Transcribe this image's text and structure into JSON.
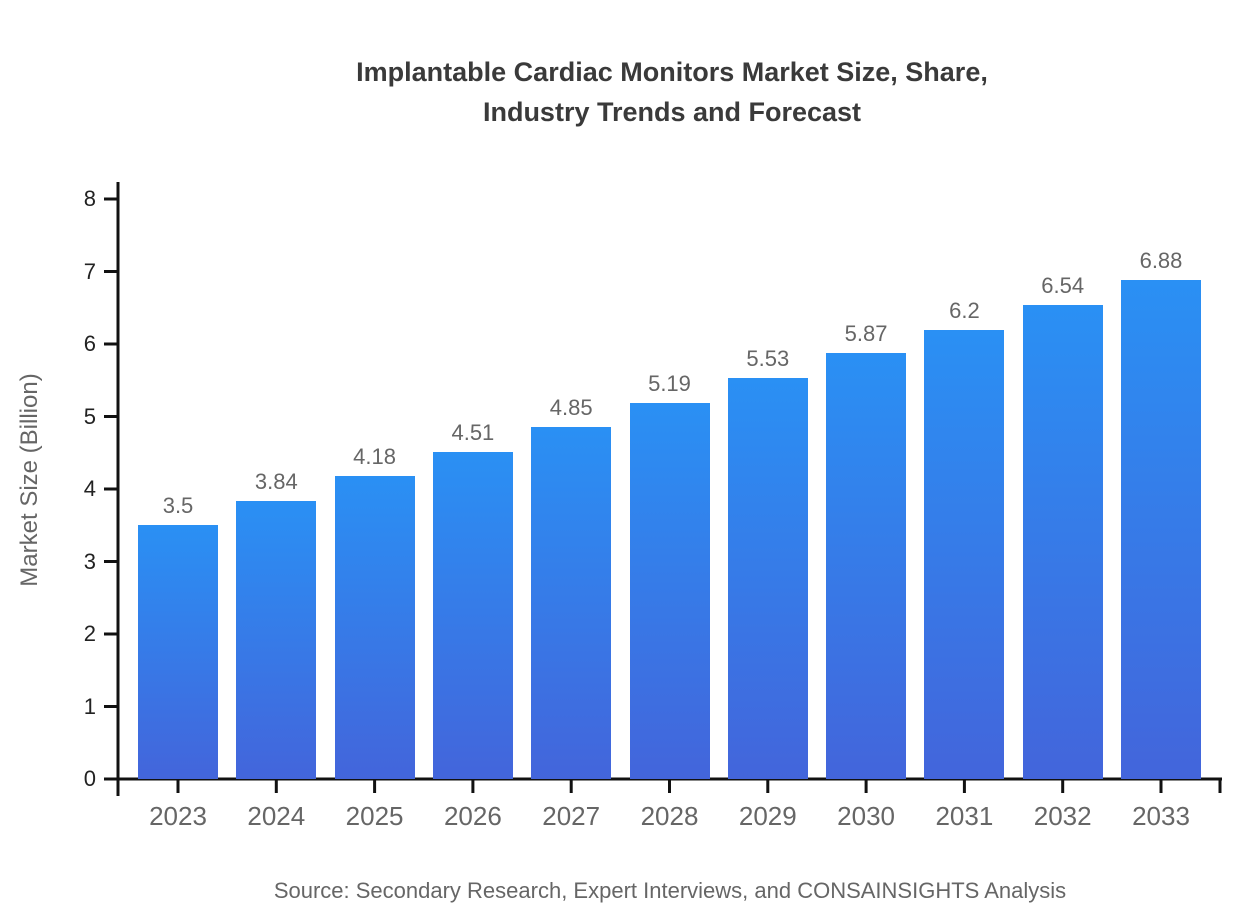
{
  "title": {
    "line1": "Implantable Cardiac Monitors Market Size, Share,",
    "line2": "Industry Trends and Forecast"
  },
  "source_note": "Source: Secondary Research, Expert Interviews, and CONSAINSIGHTS Analysis",
  "chart_data": {
    "type": "bar",
    "title": "Implantable Cardiac Monitors Market Size, Share, Industry Trends and Forecast",
    "categories": [
      "2023",
      "2024",
      "2025",
      "2026",
      "2027",
      "2028",
      "2029",
      "2030",
      "2031",
      "2032",
      "2033"
    ],
    "values": [
      3.5,
      3.84,
      4.18,
      4.51,
      4.85,
      5.19,
      5.53,
      5.87,
      6.2,
      6.54,
      6.88
    ],
    "xlabel": "",
    "ylabel": "Market Size (Billion)",
    "ylim": [
      0,
      8
    ],
    "yticks": [
      0,
      1,
      2,
      3,
      4,
      5,
      6,
      7,
      8
    ],
    "grid": false,
    "legend": false,
    "data_labels": true,
    "colors": {
      "bar_gradient_top": "#2a90f4",
      "bar_gradient_bottom": "#4365db",
      "axis": "#111111",
      "y_tick_text": "#222222",
      "x_tick_text": "#666666",
      "value_label_text": "#666666",
      "title_text": "#3a3a3a",
      "source_text": "#666666"
    }
  }
}
